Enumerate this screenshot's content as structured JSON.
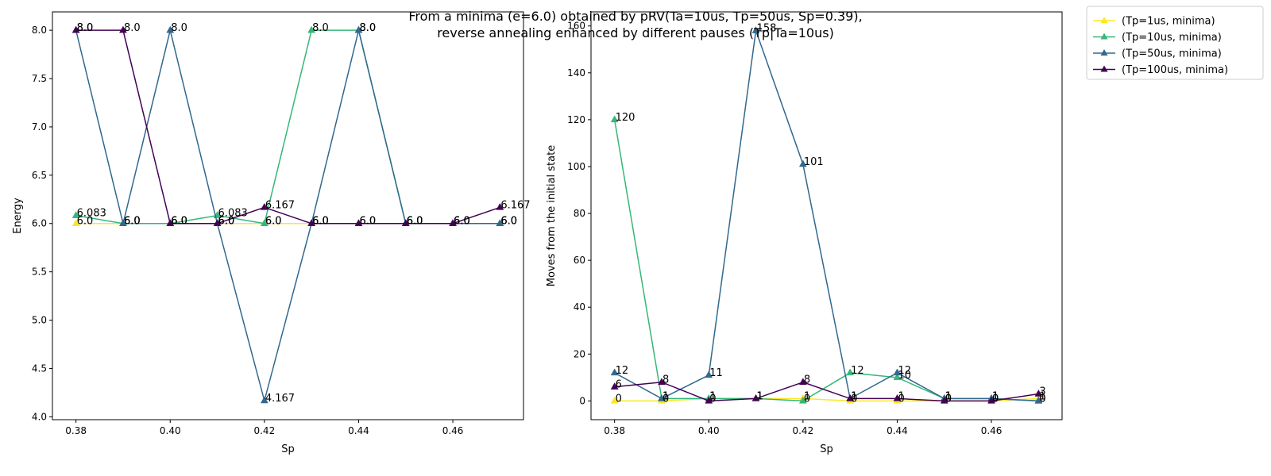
{
  "figure": {
    "title_line1": "From a minima (e=6.0) obtained by pRV(Ta=10us, Tp=50us, Sp=0.39),",
    "title_line2": "reverse annealing enhanced by different pauses (Tp|Ta=10us)"
  },
  "chart_data": [
    {
      "type": "line",
      "xlabel": "Sp",
      "ylabel": "Energy",
      "xlim": [
        0.375,
        0.475
      ],
      "ylim": [
        3.97,
        8.19
      ],
      "xticks": [
        0.38,
        0.4,
        0.42,
        0.44,
        0.46
      ],
      "xtick_labels": [
        "0.38",
        "0.40",
        "0.42",
        "0.44",
        "0.46"
      ],
      "yticks": [
        4.0,
        4.5,
        5.0,
        5.5,
        6.0,
        6.5,
        7.0,
        7.5,
        8.0
      ],
      "ytick_labels": [
        "4.0",
        "4.5",
        "5.0",
        "5.5",
        "6.0",
        "6.5",
        "7.0",
        "7.5",
        "8.0"
      ],
      "grid": false,
      "x": [
        0.38,
        0.39,
        0.4,
        0.41,
        0.42,
        0.43,
        0.44,
        0.45,
        0.46,
        0.47
      ],
      "series": [
        {
          "name": "(Tp=1us, minima)",
          "color": "#fde725",
          "values": [
            6.0,
            6.0,
            6.0,
            6.0,
            6.0,
            6.0,
            6.0,
            6.0,
            6.0,
            6.0
          ],
          "labels": [
            "6.0",
            "6.0",
            "6.0",
            "6.0",
            "6.0",
            "6.0",
            "6.0",
            "6.0",
            "6.0",
            "6.0"
          ]
        },
        {
          "name": "(Tp=10us, minima)",
          "color": "#35b779",
          "values": [
            6.083,
            6.0,
            6.0,
            6.083,
            6.0,
            8.0,
            8.0,
            6.0,
            6.0,
            6.0
          ],
          "labels": [
            "6.083",
            "6.0",
            "6.0",
            "6.083",
            "6.0",
            "8.0",
            "8.0",
            "6.0",
            "6.0",
            "6.0"
          ]
        },
        {
          "name": "(Tp=50us, minima)",
          "color": "#31688e",
          "values": [
            8.0,
            6.0,
            8.0,
            6.0,
            4.167,
            6.0,
            8.0,
            6.0,
            6.0,
            6.0
          ],
          "labels": [
            "8.0",
            "6.0",
            "8.0",
            "6.0",
            "4.167",
            "6.0",
            "8.0",
            "6.0",
            "6.0",
            "6.0"
          ]
        },
        {
          "name": "(Tp=100us, minima)",
          "color": "#440154",
          "values": [
            8.0,
            8.0,
            6.0,
            6.0,
            6.167,
            6.0,
            6.0,
            6.0,
            6.0,
            6.167
          ],
          "labels": [
            "8.0",
            "8.0",
            "6.0",
            "6.0",
            "6.167",
            "6.0",
            "6.0",
            "6.0",
            "6.0",
            "6.167"
          ]
        }
      ]
    },
    {
      "type": "line",
      "xlabel": "Sp",
      "ylabel": "Moves from the initial state",
      "xlim": [
        0.375,
        0.475
      ],
      "ylim": [
        -8,
        166
      ],
      "xticks": [
        0.38,
        0.4,
        0.42,
        0.44,
        0.46
      ],
      "xtick_labels": [
        "0.38",
        "0.40",
        "0.42",
        "0.44",
        "0.46"
      ],
      "yticks": [
        0,
        20,
        40,
        60,
        80,
        100,
        120,
        140,
        160
      ],
      "ytick_labels": [
        "0",
        "20",
        "40",
        "60",
        "80",
        "100",
        "120",
        "140",
        "160"
      ],
      "grid": false,
      "x": [
        0.38,
        0.39,
        0.4,
        0.41,
        0.42,
        0.43,
        0.44,
        0.45,
        0.46,
        0.47
      ],
      "series": [
        {
          "name": "(Tp=1us, minima)",
          "color": "#fde725",
          "values": [
            0,
            0,
            1,
            1,
            1,
            0,
            0,
            0,
            0,
            1
          ],
          "labels": [
            "0",
            "0",
            "1",
            "1",
            "1",
            "0",
            "0",
            "0",
            "0",
            "1"
          ]
        },
        {
          "name": "(Tp=10us, minima)",
          "color": "#35b779",
          "values": [
            120,
            1,
            1,
            1,
            0,
            12,
            10,
            1,
            1,
            0
          ],
          "labels": [
            "120",
            "1",
            "1",
            "1",
            "0",
            "12",
            "10",
            "1",
            "1",
            "0"
          ]
        },
        {
          "name": "(Tp=50us, minima)",
          "color": "#31688e",
          "values": [
            12,
            1,
            11,
            158,
            101,
            1,
            12,
            1,
            1,
            0
          ],
          "labels": [
            "12",
            "1",
            "11",
            "158",
            "101",
            "1",
            "12",
            "1",
            "1",
            "0"
          ]
        },
        {
          "name": "(Tp=100us, minima)",
          "color": "#440154",
          "values": [
            6,
            8,
            0,
            1,
            8,
            1,
            1,
            0,
            0,
            3
          ],
          "labels": [
            "6",
            "8",
            "0",
            "1",
            "8",
            "1",
            "1",
            "0",
            "0",
            "3"
          ]
        }
      ]
    }
  ],
  "legend": {
    "placement": "outside-top-right",
    "entries": [
      {
        "label": "(Tp=1us, minima)",
        "color": "#fde725"
      },
      {
        "label": "(Tp=10us, minima)",
        "color": "#35b779"
      },
      {
        "label": "(Tp=50us, minima)",
        "color": "#31688e"
      },
      {
        "label": "(Tp=100us, minima)",
        "color": "#440154"
      }
    ]
  }
}
